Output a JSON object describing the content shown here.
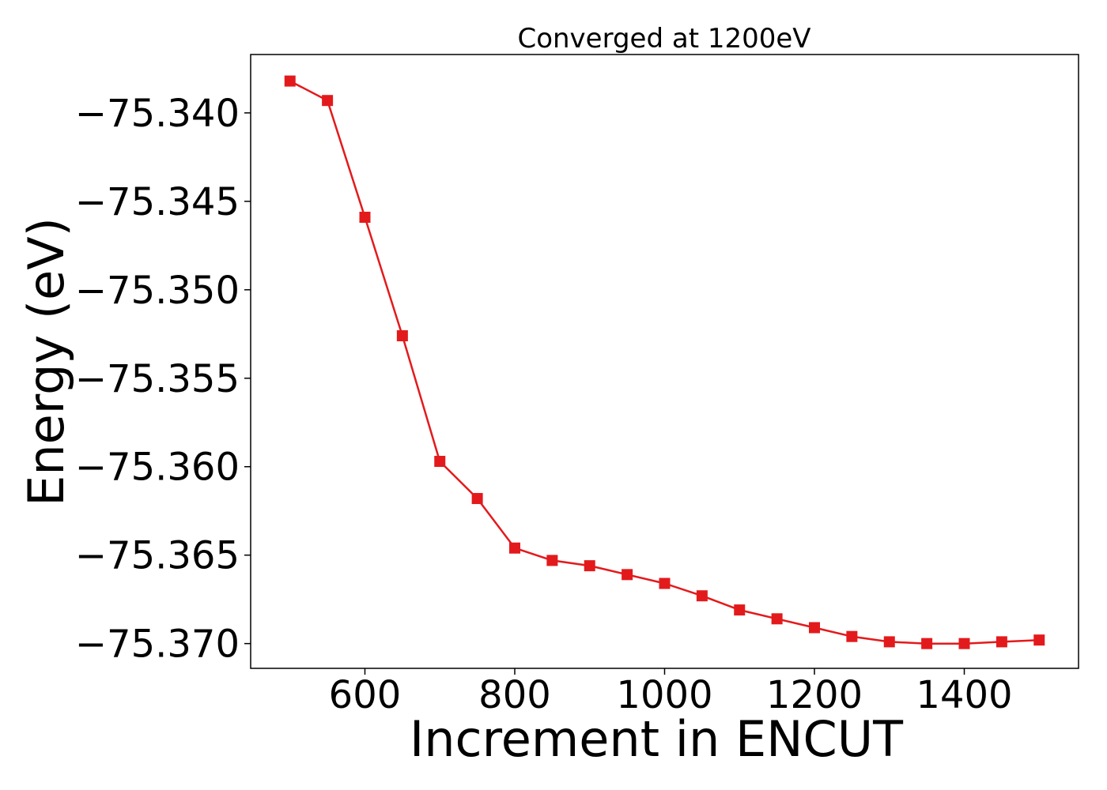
{
  "chart_data": {
    "type": "line",
    "title": "Converged at 1200eV",
    "xlabel": "Increment in ENCUT",
    "ylabel": "Energy (eV)",
    "xlim": [
      447.5,
      1552.5
    ],
    "ylim": [
      -75.3714,
      -75.3367
    ],
    "x_ticks": [
      600,
      800,
      1000,
      1200,
      1400
    ],
    "x_tick_labels": [
      "600",
      "800",
      "1000",
      "1200",
      "1400"
    ],
    "y_ticks": [
      -75.34,
      -75.345,
      -75.35,
      -75.355,
      -75.36,
      -75.365,
      -75.37
    ],
    "y_tick_labels": [
      "−75.340",
      "−75.345",
      "−75.350",
      "−75.355",
      "−75.360",
      "−75.365",
      "−75.370"
    ],
    "grid": false,
    "legend": "none",
    "series": [
      {
        "color": "#e31a1c",
        "marker": "square",
        "x": [
          500,
          550,
          600,
          650,
          700,
          750,
          800,
          850,
          900,
          950,
          1000,
          1050,
          1100,
          1150,
          1200,
          1250,
          1300,
          1350,
          1400,
          1450,
          1500
        ],
        "y": [
          -75.3382,
          -75.3393,
          -75.3459,
          -75.3526,
          -75.3597,
          -75.3618,
          -75.3646,
          -75.3653,
          -75.3656,
          -75.3661,
          -75.3666,
          -75.3673,
          -75.3681,
          -75.3686,
          -75.3691,
          -75.3696,
          -75.3699,
          -75.37,
          -75.37,
          -75.3699,
          -75.3698
        ]
      }
    ]
  }
}
